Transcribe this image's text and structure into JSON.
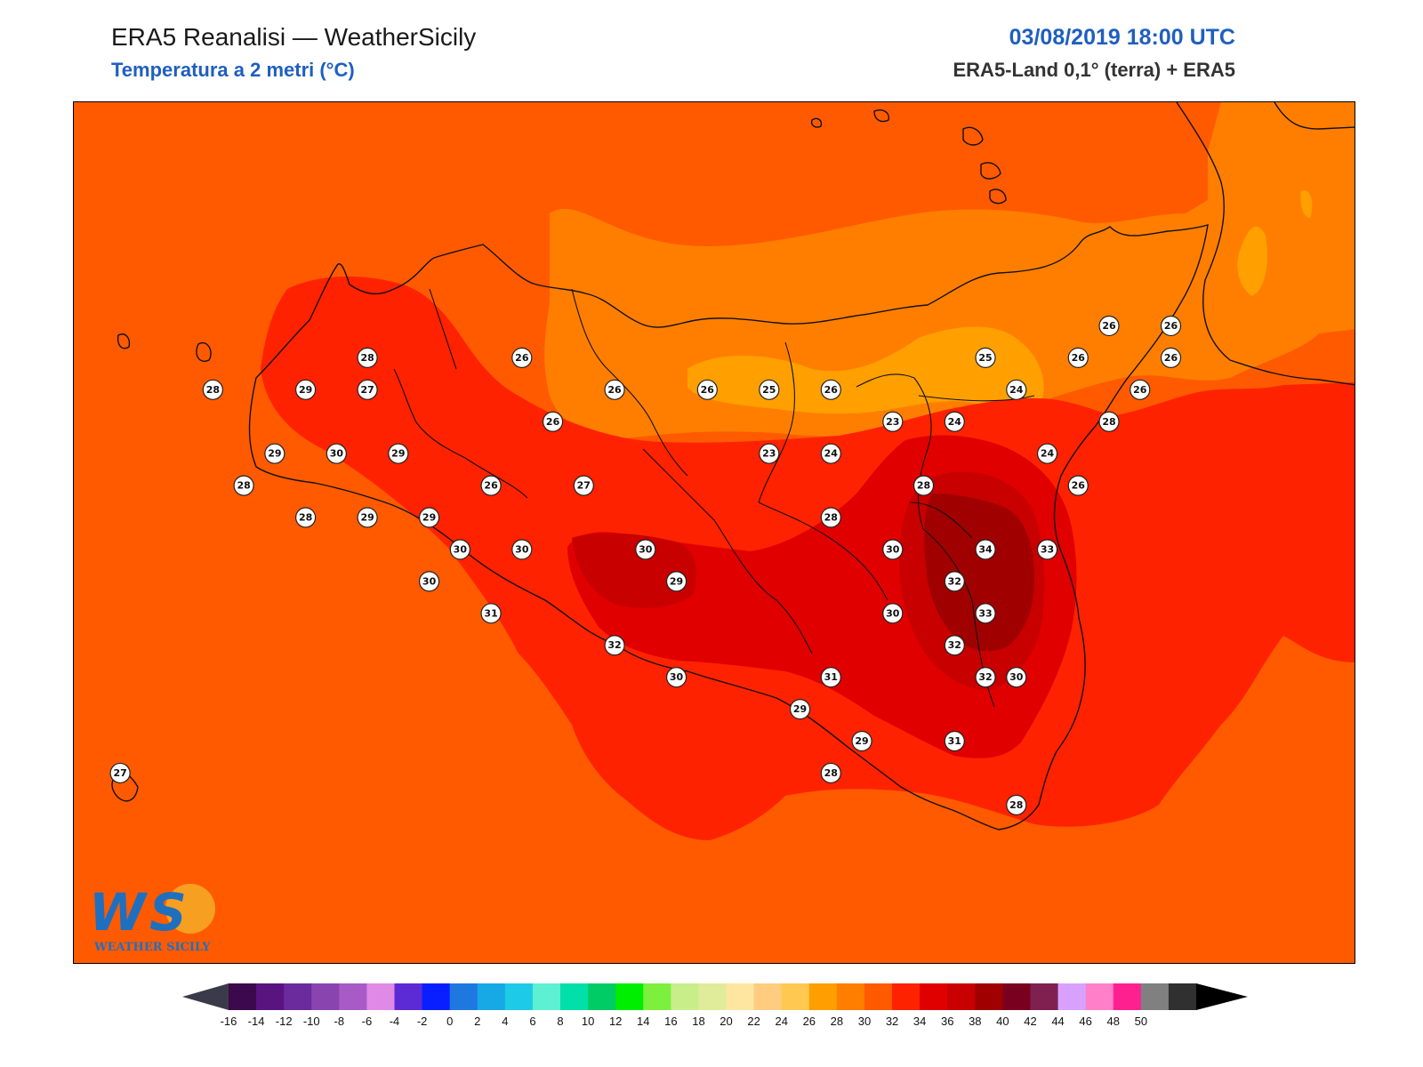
{
  "header": {
    "title": "ERA5 Reanalisi — WeatherSicily",
    "subtitle": "Temperatura a 2 metri (°C)",
    "datetime": "03/08/2019 18:00 UTC",
    "source": "ERA5-Land 0,1° (terra) + ERA5"
  },
  "logo": {
    "mark": "WS",
    "text": "WEATHER SICILY"
  },
  "legend": {
    "ticks": [
      "-16",
      "-14",
      "-12",
      "-10",
      "-8",
      "-6",
      "-4",
      "-2",
      "0",
      "2",
      "4",
      "6",
      "8",
      "10",
      "12",
      "14",
      "16",
      "18",
      "20",
      "22",
      "24",
      "26",
      "28",
      "30",
      "32",
      "34",
      "36",
      "38",
      "40",
      "42",
      "44",
      "46",
      "48",
      "50"
    ],
    "colors": [
      "#3b0a4c",
      "#5a1480",
      "#6c2b9c",
      "#8a44b0",
      "#a85bc6",
      "#e08ae6",
      "#5c2bd6",
      "#0a1fff",
      "#1e78e0",
      "#17a9e6",
      "#1ecbe6",
      "#5df0d2",
      "#00e0a8",
      "#00cc66",
      "#00ee00",
      "#7cf03c",
      "#c8ee8a",
      "#e0ec9a",
      "#ffe6a0",
      "#ffcc80",
      "#ffc850",
      "#ff9e00",
      "#ff7e00",
      "#ff5a00",
      "#ff2200",
      "#e00000",
      "#c80000",
      "#a00000",
      "#7a0020",
      "#802050",
      "#d8a0ff",
      "#ff80c8",
      "#ff2090",
      "#808080",
      "#303030"
    ],
    "low_arrow_color": "#3a3a4a",
    "high_arrow_color": "#000000"
  },
  "stations": [
    {
      "lon": 12.4,
      "lat": 38.1,
      "value": 28
    },
    {
      "lon": 12.9,
      "lat": 38.2,
      "value": 28
    },
    {
      "lon": 13.4,
      "lat": 38.2,
      "value": 26
    },
    {
      "lon": 12.7,
      "lat": 38.1,
      "value": 29
    },
    {
      "lon": 12.9,
      "lat": 38.1,
      "value": 27
    },
    {
      "lon": 13.5,
      "lat": 38.0,
      "value": 26
    },
    {
      "lon": 13.7,
      "lat": 38.1,
      "value": 26
    },
    {
      "lon": 14.0,
      "lat": 38.1,
      "value": 26
    },
    {
      "lon": 14.2,
      "lat": 38.1,
      "value": 25
    },
    {
      "lon": 14.4,
      "lat": 38.1,
      "value": 26
    },
    {
      "lon": 14.9,
      "lat": 38.2,
      "value": 25
    },
    {
      "lon": 15.2,
      "lat": 38.2,
      "value": 26
    },
    {
      "lon": 15.3,
      "lat": 38.3,
      "value": 26
    },
    {
      "lon": 15.5,
      "lat": 38.3,
      "value": 26
    },
    {
      "lon": 15.5,
      "lat": 38.2,
      "value": 26
    },
    {
      "lon": 15.0,
      "lat": 38.1,
      "value": 24
    },
    {
      "lon": 15.4,
      "lat": 38.1,
      "value": 26
    },
    {
      "lon": 14.6,
      "lat": 38.0,
      "value": 23
    },
    {
      "lon": 14.8,
      "lat": 38.0,
      "value": 24
    },
    {
      "lon": 15.3,
      "lat": 38.0,
      "value": 28
    },
    {
      "lon": 12.6,
      "lat": 37.9,
      "value": 29
    },
    {
      "lon": 12.8,
      "lat": 37.9,
      "value": 30
    },
    {
      "lon": 13.0,
      "lat": 37.9,
      "value": 29
    },
    {
      "lon": 14.2,
      "lat": 37.9,
      "value": 23
    },
    {
      "lon": 14.4,
      "lat": 37.9,
      "value": 24
    },
    {
      "lon": 15.1,
      "lat": 37.9,
      "value": 24
    },
    {
      "lon": 12.5,
      "lat": 37.8,
      "value": 28
    },
    {
      "lon": 13.3,
      "lat": 37.8,
      "value": 26
    },
    {
      "lon": 13.6,
      "lat": 37.8,
      "value": 27
    },
    {
      "lon": 14.7,
      "lat": 37.8,
      "value": 28
    },
    {
      "lon": 15.2,
      "lat": 37.8,
      "value": 26
    },
    {
      "lon": 12.7,
      "lat": 37.7,
      "value": 28
    },
    {
      "lon": 12.9,
      "lat": 37.7,
      "value": 29
    },
    {
      "lon": 13.1,
      "lat": 37.7,
      "value": 29
    },
    {
      "lon": 14.4,
      "lat": 37.7,
      "value": 28
    },
    {
      "lon": 13.2,
      "lat": 37.6,
      "value": 30
    },
    {
      "lon": 13.4,
      "lat": 37.6,
      "value": 30
    },
    {
      "lon": 13.8,
      "lat": 37.6,
      "value": 30
    },
    {
      "lon": 14.6,
      "lat": 37.6,
      "value": 30
    },
    {
      "lon": 14.9,
      "lat": 37.6,
      "value": 34
    },
    {
      "lon": 15.1,
      "lat": 37.6,
      "value": 33
    },
    {
      "lon": 13.1,
      "lat": 37.5,
      "value": 30
    },
    {
      "lon": 13.9,
      "lat": 37.5,
      "value": 29
    },
    {
      "lon": 14.8,
      "lat": 37.5,
      "value": 32
    },
    {
      "lon": 13.3,
      "lat": 37.4,
      "value": 31
    },
    {
      "lon": 14.6,
      "lat": 37.4,
      "value": 30
    },
    {
      "lon": 14.9,
      "lat": 37.4,
      "value": 33
    },
    {
      "lon": 13.7,
      "lat": 37.3,
      "value": 32
    },
    {
      "lon": 14.8,
      "lat": 37.3,
      "value": 32
    },
    {
      "lon": 13.9,
      "lat": 37.2,
      "value": 30
    },
    {
      "lon": 14.4,
      "lat": 37.2,
      "value": 31
    },
    {
      "lon": 14.9,
      "lat": 37.2,
      "value": 32
    },
    {
      "lon": 15.0,
      "lat": 37.2,
      "value": 30
    },
    {
      "lon": 14.3,
      "lat": 37.1,
      "value": 29
    },
    {
      "lon": 14.5,
      "lat": 37.0,
      "value": 29
    },
    {
      "lon": 14.8,
      "lat": 37.0,
      "value": 31
    },
    {
      "lon": 12.1,
      "lat": 36.9,
      "value": 27
    },
    {
      "lon": 14.4,
      "lat": 36.9,
      "value": 28
    },
    {
      "lon": 15.0,
      "lat": 36.8,
      "value": 28
    }
  ]
}
